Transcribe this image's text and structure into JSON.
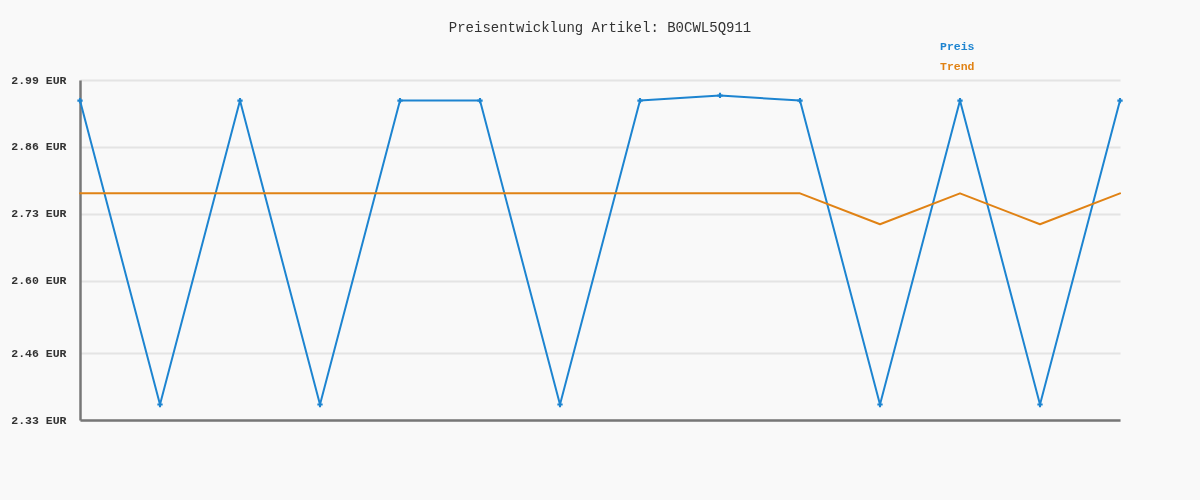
{
  "chart_data": {
    "type": "line",
    "title": "Preisentwicklung Artikel: B0CWL5Q911",
    "categories": [
      null,
      null,
      null,
      null,
      null,
      null,
      null,
      null,
      null,
      null,
      null,
      null,
      null,
      null
    ],
    "series": [
      {
        "name": "Preis",
        "color": "#1d84d0",
        "marker": "cross",
        "values": [
          2.95,
          2.36,
          2.95,
          2.36,
          2.95,
          2.95,
          2.36,
          2.95,
          2.96,
          2.95,
          2.36,
          2.95,
          2.36,
          2.95
        ]
      },
      {
        "name": "Trend",
        "color": "#e08214",
        "marker": "none",
        "values": [
          2.77,
          2.77,
          2.77,
          2.77,
          2.77,
          2.77,
          2.77,
          2.77,
          2.77,
          2.77,
          2.71,
          2.77,
          2.71,
          2.77
        ]
      }
    ],
    "ylim": [
      2.33,
      2.99
    ],
    "yticks": [
      {
        "value": 2.33,
        "label": "2.33 EUR"
      },
      {
        "value": 2.46,
        "label": "2.46 EUR"
      },
      {
        "value": 2.6,
        "label": "2.60 EUR"
      },
      {
        "value": 2.73,
        "label": "2.73 EUR"
      },
      {
        "value": 2.86,
        "label": "2.86 EUR"
      },
      {
        "value": 2.99,
        "label": "2.99 EUR"
      }
    ],
    "grid": "y",
    "legend": "top right",
    "tick_labels": "y"
  }
}
